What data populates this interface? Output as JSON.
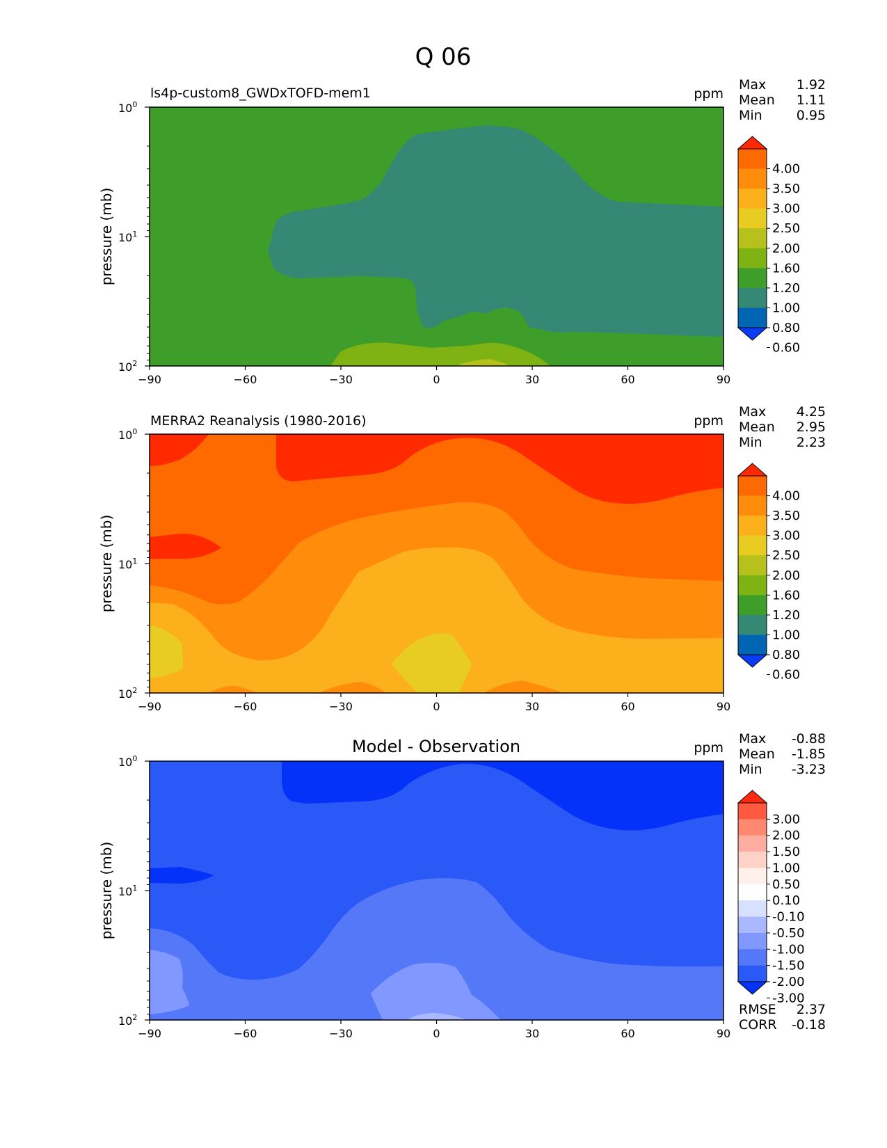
{
  "figure_title": "Q 06",
  "chart_data": [
    {
      "type": "contour",
      "title": "ls4p-custom8_GWDxTOFD-mem1",
      "units": "ppm",
      "xlabel": "",
      "ylabel": "pressure (mb)",
      "x_ticks": [
        "−90",
        "−60",
        "−30",
        "0",
        "30",
        "60",
        "90"
      ],
      "xlim": [
        -90,
        90
      ],
      "ylim_pressure": [
        100,
        1
      ],
      "y_scale": "log",
      "stats": [
        {
          "label": "Max",
          "value": "1.92"
        },
        {
          "label": "Mean",
          "value": "1.11"
        },
        {
          "label": "Min",
          "value": "0.95"
        }
      ],
      "colorbar_labels": [
        "4.00",
        "3.50",
        "3.00",
        "2.50",
        "2.00",
        "1.60",
        "1.20",
        "1.00",
        "0.80",
        "0.60"
      ],
      "colorbar_colors": [
        "#ff2a00",
        "#ff6a00",
        "#ff8c0a",
        "#fcb01c",
        "#e8cc22",
        "#b6c11c",
        "#7fb314",
        "#3f9e2a",
        "#358873",
        "#0066b4",
        "#0a3bf5"
      ],
      "contours": [
        {
          "level": "1.00-1.20",
          "color": "#3f9e2a"
        },
        {
          "level": "0.80-1.00",
          "color": "#358873"
        },
        {
          "level": "1.20-1.60",
          "color": "#7fb314"
        },
        {
          "level": "1.60-2.00",
          "color": "#b6c11c"
        }
      ]
    },
    {
      "type": "contour",
      "title": "MERRA2 Reanalysis (1980-2016)",
      "units": "ppm",
      "xlabel": "",
      "ylabel": "pressure (mb)",
      "x_ticks": [
        "−90",
        "−60",
        "−30",
        "0",
        "30",
        "60",
        "90"
      ],
      "xlim": [
        -90,
        90
      ],
      "ylim_pressure": [
        100,
        1
      ],
      "y_scale": "log",
      "stats": [
        {
          "label": "Max",
          "value": "4.25"
        },
        {
          "label": "Mean",
          "value": "2.95"
        },
        {
          "label": "Min",
          "value": "2.23"
        }
      ],
      "colorbar_labels": [
        "4.00",
        "3.50",
        "3.00",
        "2.50",
        "2.00",
        "1.60",
        "1.20",
        "1.00",
        "0.80",
        "0.60"
      ],
      "colorbar_colors": [
        "#ff2a00",
        "#ff6a00",
        "#ff8c0a",
        "#fcb01c",
        "#e8cc22",
        "#b6c11c",
        "#7fb314",
        "#3f9e2a",
        "#358873",
        "#0066b4",
        "#0a3bf5"
      ],
      "contours": [
        {
          "level": "3.50-4.00",
          "color": "#ff6a00"
        },
        {
          "level": ">4.00",
          "color": "#ff2a00"
        },
        {
          "level": "3.00-3.50",
          "color": "#ff8c0a"
        },
        {
          "level": "2.50-3.00",
          "color": "#fcb01c"
        },
        {
          "level": "2.00-2.50",
          "color": "#e8cc22"
        }
      ]
    },
    {
      "type": "contour",
      "title": "Model - Observation",
      "units": "ppm",
      "xlabel": "",
      "ylabel": "pressure (mb)",
      "x_ticks": [
        "−90",
        "−60",
        "−30",
        "0",
        "30",
        "60",
        "90"
      ],
      "xlim": [
        -90,
        90
      ],
      "ylim_pressure": [
        100,
        1
      ],
      "y_scale": "log",
      "stats": [
        {
          "label": "Max",
          "value": "-0.88"
        },
        {
          "label": "Mean",
          "value": "-1.85"
        },
        {
          "label": "Min",
          "value": "-3.23"
        }
      ],
      "extra_stats": [
        {
          "label": "RMSE",
          "value": "2.37"
        },
        {
          "label": "CORR",
          "value": "-0.18"
        }
      ],
      "colorbar_labels": [
        "3.00",
        "2.00",
        "1.50",
        "1.00",
        "0.50",
        "0.10",
        "-0.10",
        "-0.50",
        "-1.00",
        "-1.50",
        "-2.00",
        "-3.00"
      ],
      "colorbar_colors": [
        "#ff2a10",
        "#ff5a40",
        "#ff8870",
        "#ffada0",
        "#ffd2c8",
        "#fff0ec",
        "#ffffff",
        "#d8e0ff",
        "#aab8ff",
        "#8098ff",
        "#5578f8",
        "#2b59f8",
        "#0532f8"
      ],
      "contours": [
        {
          "level": "-2.00 to -1.50",
          "color": "#2b59f8"
        },
        {
          "level": "< -3.00",
          "color": "#0532f8"
        },
        {
          "level": "-1.50 to -1.00",
          "color": "#5578f8"
        },
        {
          "level": "-1.00 to -0.50",
          "color": "#8098ff"
        },
        {
          "level": "-0.50 to -0.10",
          "color": "#aab8ff"
        }
      ]
    }
  ],
  "y_tick_labels": [
    "10",
    "10",
    "10"
  ],
  "y_tick_exponents": [
    "0",
    "1",
    "2"
  ]
}
